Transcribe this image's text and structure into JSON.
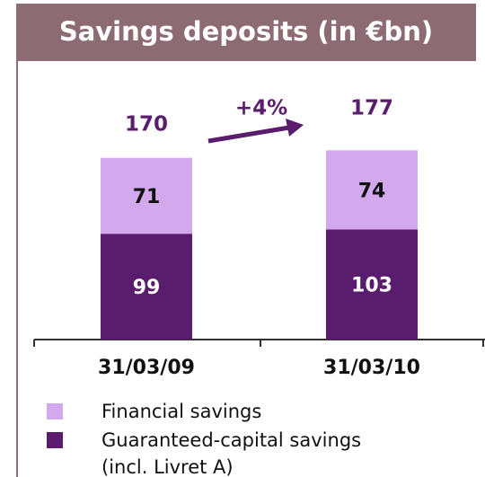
{
  "chart_data": {
    "type": "stacked_bar",
    "title": "Savings deposits (in €bn)",
    "categories": [
      "31/03/09",
      "31/03/10"
    ],
    "series": [
      {
        "name": "Guaranteed-capital savings (incl. Livret A)",
        "color": "#5a1c6c",
        "values": [
          99,
          103
        ]
      },
      {
        "name": "Financial savings",
        "color": "#d3a9ed",
        "values": [
          71,
          74
        ]
      }
    ],
    "totals": [
      170,
      177
    ],
    "annotation": "+4%",
    "ylim": [
      0,
      200
    ]
  }
}
